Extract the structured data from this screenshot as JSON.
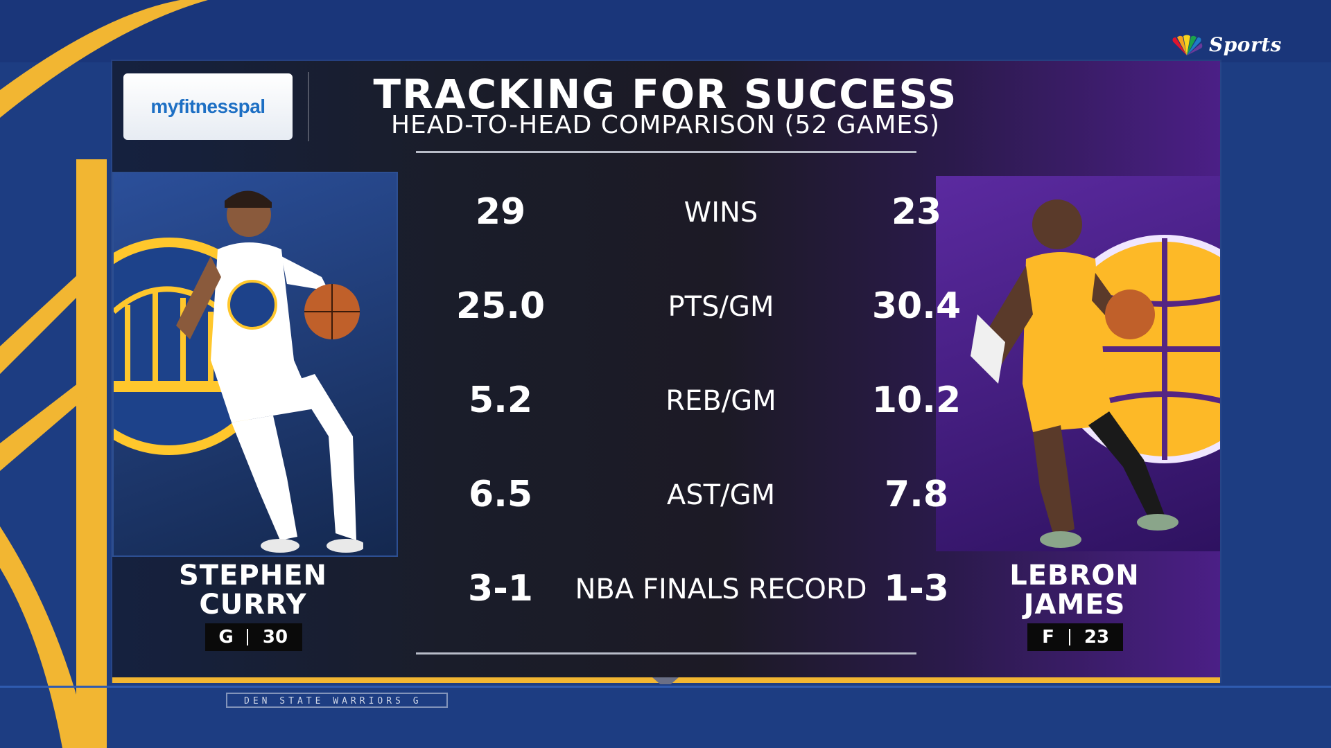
{
  "network": {
    "logo_text": "Sports",
    "logo_icon": "peacock-icon"
  },
  "sponsor": {
    "name": "myfitnesspal"
  },
  "header": {
    "title": "TRACKING FOR SUCCESS",
    "subtitle": "HEAD-TO-HEAD COMPARISON (52 GAMES)"
  },
  "player_left": {
    "first": "STEPHEN",
    "last": "CURRY",
    "position": "G",
    "number": "30",
    "team_color": "#1d428a",
    "team_accent": "#ffc72c"
  },
  "player_right": {
    "first": "LEBRON",
    "last": "JAMES",
    "position": "F",
    "number": "23",
    "team_color": "#552583",
    "team_accent": "#fdb927"
  },
  "stats": [
    {
      "label": "WINS",
      "left": "29",
      "right": "23"
    },
    {
      "label": "PTS/GM",
      "left": "25.0",
      "right": "30.4"
    },
    {
      "label": "REB/GM",
      "left": "5.2",
      "right": "10.2"
    },
    {
      "label": "AST/GM",
      "left": "6.5",
      "right": "7.8"
    },
    {
      "label": "NBA FINALS RECORD",
      "left": "3-1",
      "right": "1-3"
    }
  ],
  "ticker": {
    "text": "DEN STATE WARRIORS   G"
  }
}
